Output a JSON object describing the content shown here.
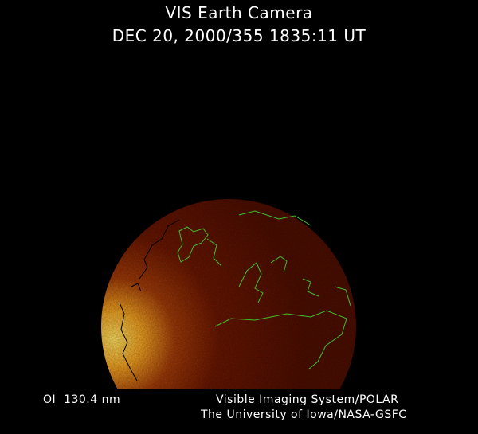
{
  "header": {
    "title": "VIS Earth Camera",
    "subtitle": "DEC 20, 2000/355 1835:11 UT"
  },
  "footer": {
    "band": "OI  130.4 nm",
    "instrument": "Visible Imaging System/POLAR",
    "organization": "The University of Iowa/NASA-GSFC"
  },
  "colors": {
    "background": "#000000",
    "dayglow_bright": "#ffd040",
    "disk_dark": "#5a1000",
    "coastline": "#3fbf2a",
    "coastline_dark": "#000000"
  }
}
